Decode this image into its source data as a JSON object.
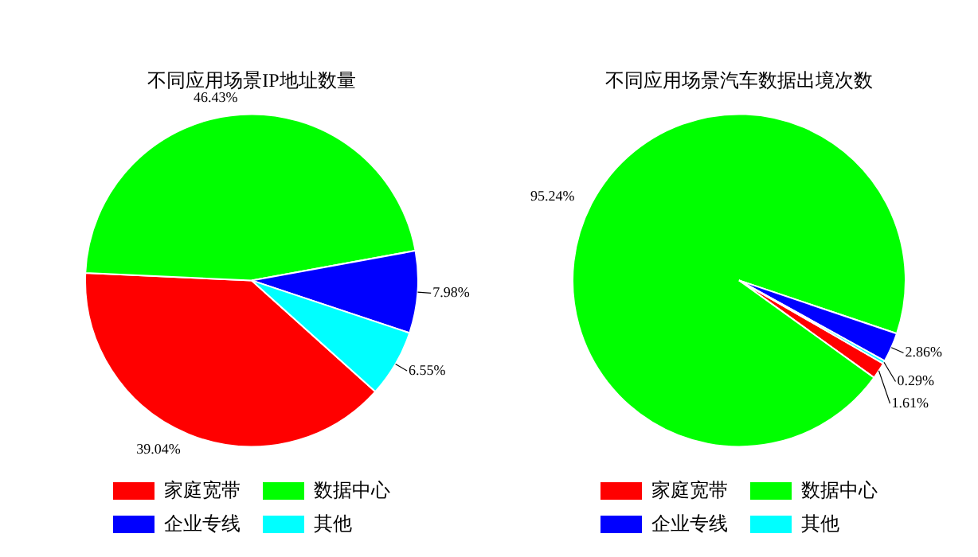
{
  "chart_data": [
    {
      "type": "pie",
      "title": "不同应用场景IP地址数量",
      "categories": [
        "家庭宽带",
        "数据中心",
        "企业专线",
        "其他"
      ],
      "values": [
        39.04,
        46.43,
        7.98,
        6.55
      ],
      "colors": [
        "#ff0000",
        "#00ff00",
        "#0000ff",
        "#00ffff"
      ],
      "value_labels": [
        "39.04%",
        "46.43%",
        "7.98%",
        "6.55%"
      ],
      "legend": "bottom"
    },
    {
      "type": "pie",
      "title": "不同应用场景汽车数据出境次数",
      "categories": [
        "家庭宽带",
        "数据中心",
        "企业专线",
        "其他"
      ],
      "values": [
        1.61,
        95.24,
        2.86,
        0.29
      ],
      "colors": [
        "#ff0000",
        "#00ff00",
        "#0000ff",
        "#00ffff"
      ],
      "value_labels": [
        "1.61%",
        "95.24%",
        "2.86%",
        "0.29%"
      ],
      "legend": "bottom"
    }
  ]
}
